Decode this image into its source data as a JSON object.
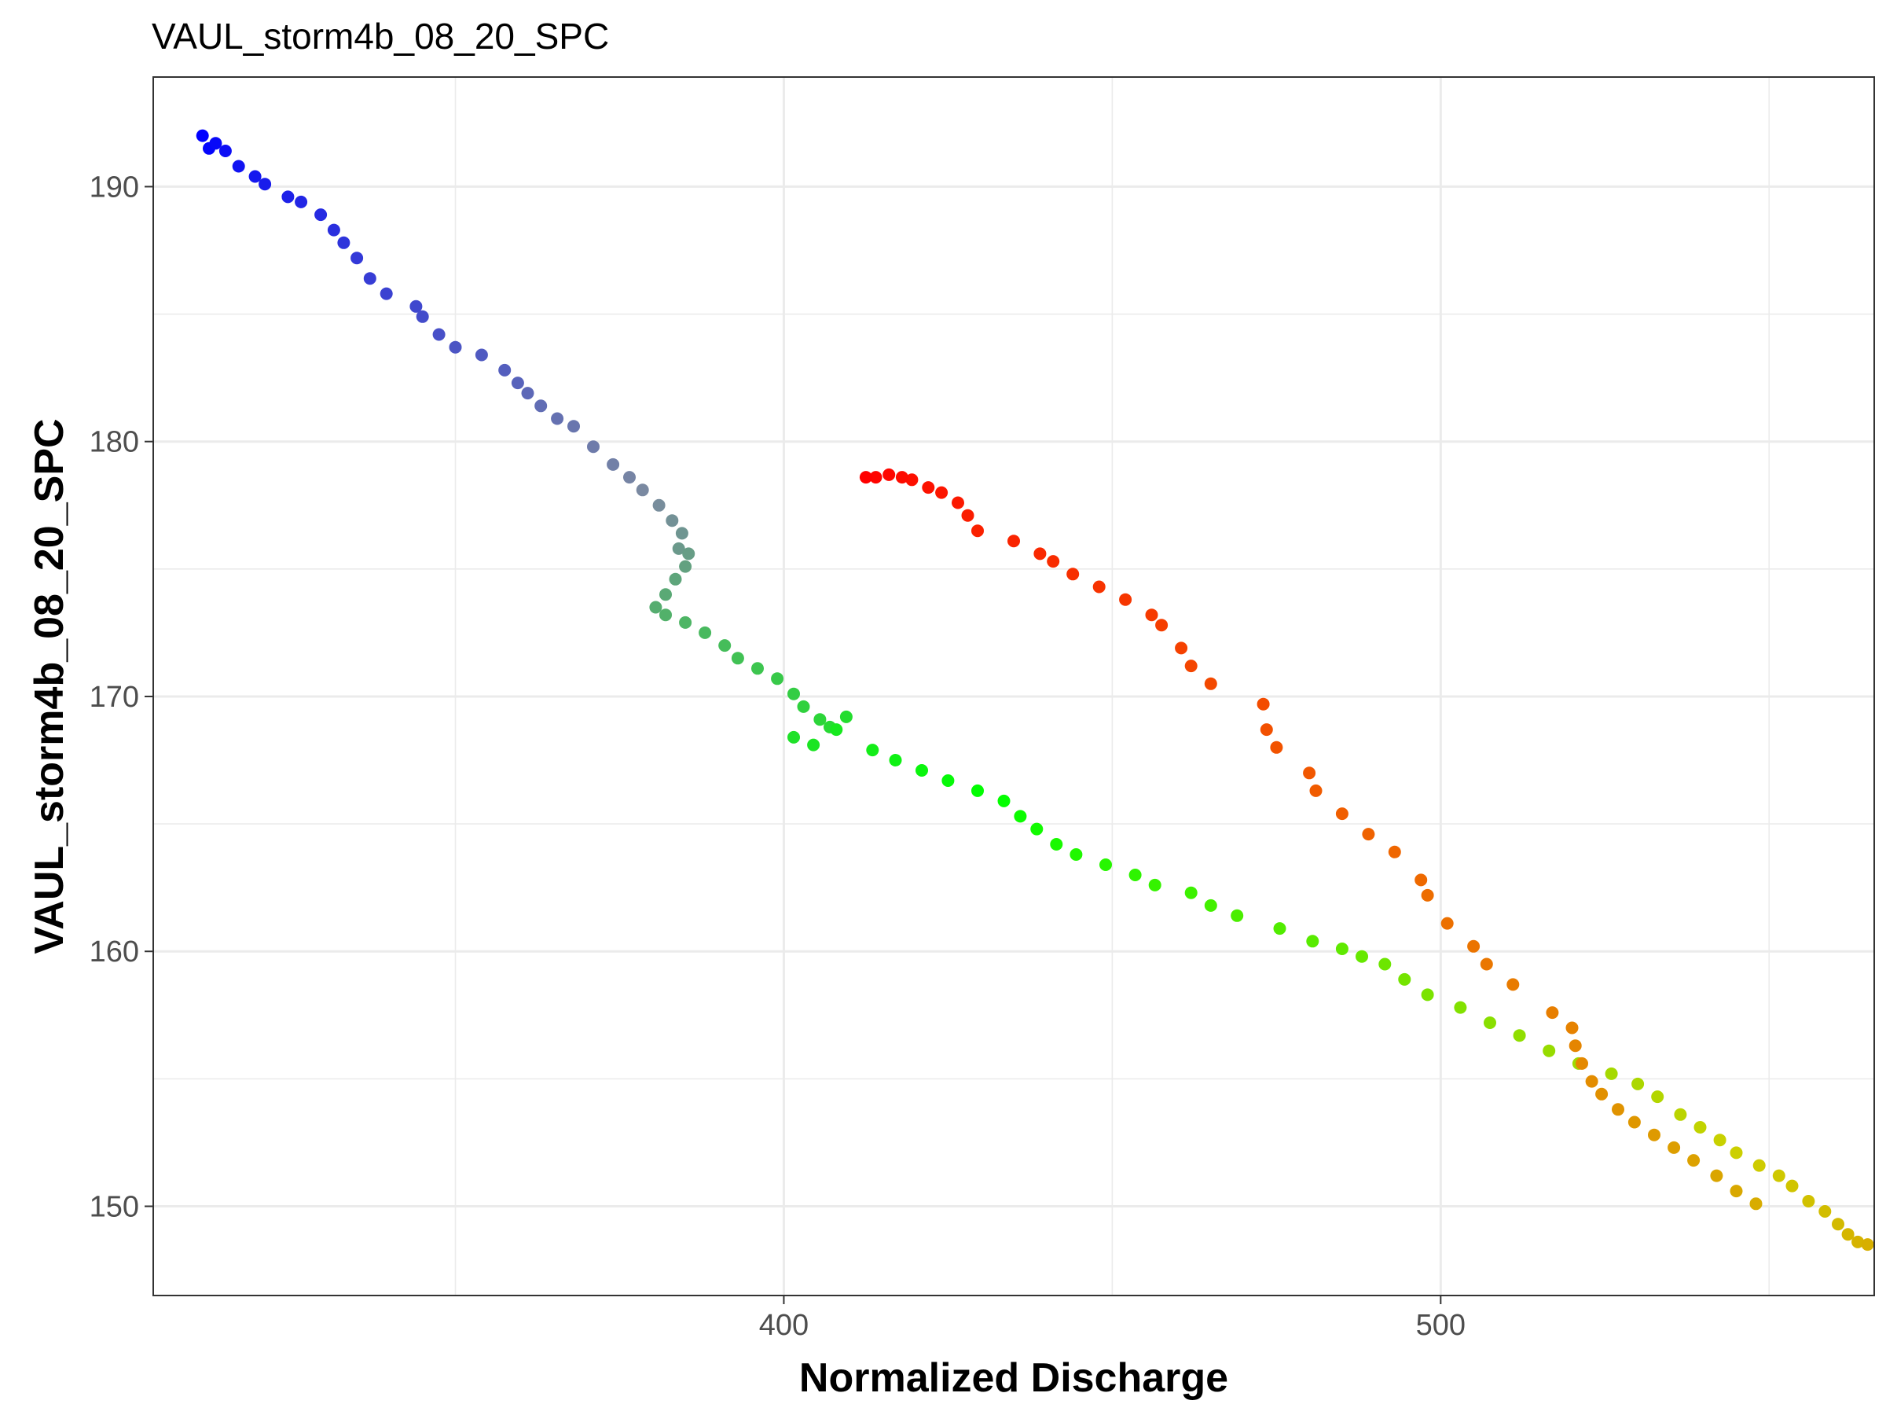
{
  "chart_data": {
    "type": "scatter",
    "title": "VAUL_storm4b_08_20_SPC",
    "xlabel": "Normalized Discharge",
    "ylabel": "VAUL_storm4b_08_20_SPC",
    "xlim": [
      304,
      566
    ],
    "ylim": [
      146.5,
      194.3
    ],
    "x_major_ticks": [
      400,
      500
    ],
    "x_minor_ticks": [
      350,
      450,
      550
    ],
    "y_major_ticks": [
      150,
      160,
      170,
      180,
      190
    ],
    "y_minor_ticks": [
      155,
      165,
      175,
      185
    ],
    "grid": true,
    "legend": "none",
    "color_scale": "sequential by observation time: blue → slate → green → lime → orange → red",
    "color_stops": [
      "#0000ff",
      "#7b8aa0",
      "#00ff00",
      "#ccd000",
      "#ee6a00",
      "#ff0000"
    ],
    "rising_limb": {
      "x": [
        311.5,
        312.5,
        313.5,
        315,
        317,
        319.5,
        321,
        324.5,
        326.5,
        329.5,
        331.5,
        333,
        335,
        337,
        339.5,
        344,
        345,
        347.5,
        350,
        354,
        357.5,
        359.5,
        361,
        363,
        365.5,
        368,
        371,
        374,
        376.5,
        378.5,
        381,
        383,
        384.5,
        384,
        385.5,
        385,
        383.5,
        382,
        380.5,
        382,
        385,
        388,
        391,
        393,
        396,
        399,
        401.5,
        403,
        405.5,
        407,
        409.5,
        401.5,
        404.5,
        408,
        413.5,
        417,
        421,
        425,
        429.5,
        433.5,
        436,
        438.5,
        441.5,
        444.5,
        449,
        453.5,
        456.5,
        462,
        465,
        469,
        475.5,
        480.5,
        485,
        488,
        491.5,
        494.5,
        498,
        503,
        507.5,
        512,
        516.5,
        521,
        526,
        530,
        533,
        536.5,
        539.5,
        542.5,
        545,
        548.5,
        551.5,
        553.5,
        556,
        558.5,
        560.5,
        562,
        563.5,
        565
      ],
      "y": [
        192,
        191.5,
        191.7,
        191.4,
        190.8,
        190.4,
        190.1,
        189.6,
        189.4,
        188.9,
        188.3,
        187.8,
        187.2,
        186.4,
        185.8,
        185.3,
        184.9,
        184.2,
        183.7,
        183.4,
        182.8,
        182.3,
        181.9,
        181.4,
        180.9,
        180.6,
        179.8,
        179.1,
        178.6,
        178.1,
        177.5,
        176.9,
        176.4,
        175.8,
        175.6,
        175.1,
        174.6,
        174.0,
        173.5,
        173.2,
        172.9,
        172.5,
        172.0,
        171.5,
        171.1,
        170.7,
        170.1,
        169.6,
        169.1,
        168.8,
        169.2,
        168.4,
        168.1,
        168.7,
        167.9,
        167.5,
        167.1,
        166.7,
        166.3,
        165.9,
        165.3,
        164.8,
        164.2,
        163.8,
        163.4,
        163.0,
        162.6,
        162.3,
        161.8,
        161.4,
        160.9,
        160.4,
        160.1,
        159.8,
        159.5,
        158.9,
        158.3,
        157.8,
        157.2,
        156.7,
        156.1,
        155.6,
        155.2,
        154.8,
        154.3,
        153.6,
        153.1,
        152.6,
        152.1,
        151.6,
        151.2,
        150.8,
        150.2,
        149.8,
        149.3,
        148.9,
        148.6,
        148.5
      ]
    },
    "falling_limb": {
      "x": [
        412.5,
        414,
        416,
        418,
        419.5,
        422,
        424,
        426.5,
        428,
        429.5,
        435,
        439,
        441,
        444,
        448,
        452,
        456,
        457.5,
        460.5,
        462,
        465,
        473,
        473.5,
        475,
        480,
        481,
        485,
        489,
        493,
        497,
        498,
        501,
        505,
        507,
        511,
        517,
        520,
        520.5,
        521.5,
        523,
        524.5,
        527,
        529.5,
        532.5,
        535.5,
        538.5,
        542,
        545,
        548
      ],
      "y": [
        178.6,
        178.6,
        178.7,
        178.6,
        178.5,
        178.2,
        178.0,
        177.6,
        177.1,
        176.5,
        176.1,
        175.6,
        175.3,
        174.8,
        174.3,
        173.8,
        173.2,
        172.8,
        171.9,
        171.2,
        170.5,
        169.7,
        168.7,
        168.0,
        167.0,
        166.3,
        165.4,
        164.6,
        163.9,
        162.8,
        162.2,
        161.1,
        160.2,
        159.5,
        158.7,
        157.6,
        157.0,
        156.3,
        155.6,
        154.9,
        154.4,
        153.8,
        153.3,
        152.8,
        152.3,
        151.8,
        151.2,
        150.6,
        150.1
      ]
    }
  }
}
